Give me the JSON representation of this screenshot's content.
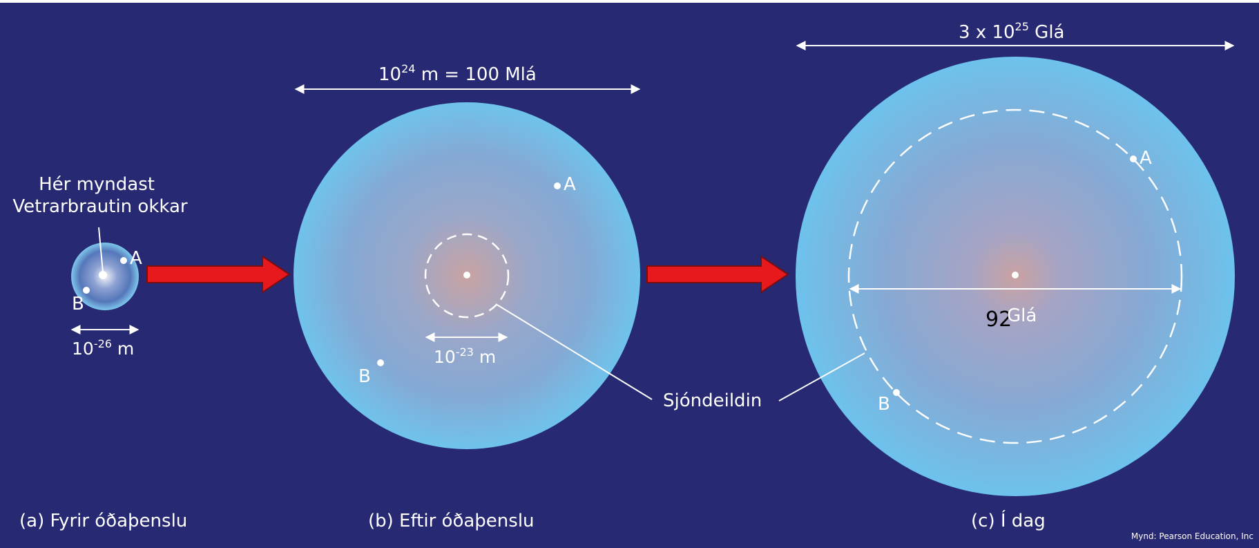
{
  "panels": {
    "a": {
      "caption": "(a) Fyrir óðaþenslu",
      "note_line1": "Hér myndast",
      "note_line2": "Vetrarbrautin okkar",
      "point_a": "A",
      "point_b": "B",
      "scale_base": "10",
      "scale_exp": "-26",
      "scale_unit": " m"
    },
    "b": {
      "caption": "(b) Eftir óðaþenslu",
      "width_base": "10",
      "width_exp": "24",
      "width_rest": " m = 100 Mlá",
      "point_a": "A",
      "point_b": "B",
      "inner_base": "10",
      "inner_exp": "-23",
      "inner_unit": " m"
    },
    "c": {
      "caption": "(c) Í dag",
      "width_prefix": "3 x 10",
      "width_exp": "25",
      "width_unit": " Glá",
      "point_a": "A",
      "point_b": "B",
      "horizon_value": "92",
      "horizon_unit": " Glá"
    }
  },
  "horizon_label": "Sjóndeildin",
  "credit": "Mynd: Pearson Education, Inc",
  "colors": {
    "background": "#272a72",
    "sphere_center": "#c79e9c",
    "sphere_edge": "#6ec1ea",
    "arrow": "#e8191c"
  }
}
